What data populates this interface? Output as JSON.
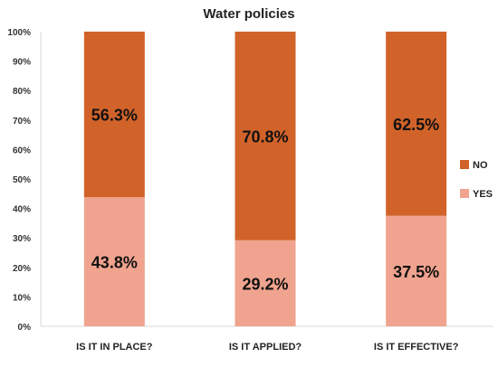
{
  "chart_data": {
    "type": "bar",
    "stacked": true,
    "title": "Water policies",
    "xlabel": "",
    "ylabel": "",
    "categories": [
      "IS IT IN PLACE?",
      "IS IT APPLIED?",
      "IS IT EFFECTIVE?"
    ],
    "ylim": [
      0,
      100
    ],
    "yticks": [
      "0%",
      "10%",
      "20%",
      "30%",
      "40%",
      "50%",
      "60%",
      "70%",
      "80%",
      "90%",
      "100%"
    ],
    "series": [
      {
        "name": "YES",
        "values": [
          43.8,
          29.2,
          37.5
        ],
        "labels": [
          "43.8%",
          "29.2%",
          "37.5%"
        ],
        "color": "#F0A38E"
      },
      {
        "name": "NO",
        "values": [
          56.3,
          70.8,
          62.5
        ],
        "labels": [
          "56.3%",
          "70.8%",
          "62.5%"
        ],
        "color": "#D1632A"
      }
    ],
    "legend": {
      "position": "right",
      "order": [
        "NO",
        "YES"
      ]
    },
    "grid": false
  }
}
